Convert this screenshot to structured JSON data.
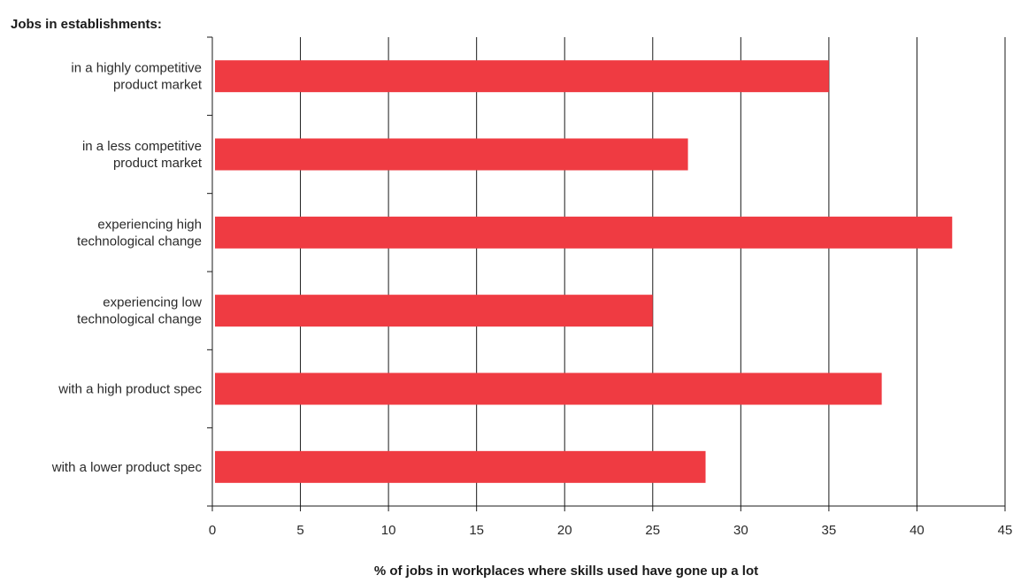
{
  "chart_data": {
    "type": "bar",
    "orientation": "horizontal",
    "group_title": "Jobs in establishments:",
    "xlabel": "% of jobs in workplaces where skills used have gone up a lot",
    "ylabel": "",
    "xlim": [
      0,
      45
    ],
    "x_ticks": [
      "0",
      "5",
      "10",
      "15",
      "20",
      "25",
      "30",
      "35",
      "40",
      "45"
    ],
    "grid": "vertical",
    "bar_color": "#ef3b42",
    "categories": [
      [
        "in a highly competitive",
        "product market"
      ],
      [
        "in a less competitive",
        "product market"
      ],
      [
        "experiencing high",
        "technological change"
      ],
      [
        "experiencing low",
        "technological change"
      ],
      [
        "with a high product spec"
      ],
      [
        "with a lower product spec"
      ]
    ],
    "values": [
      35,
      27,
      42,
      25,
      38,
      28
    ]
  }
}
